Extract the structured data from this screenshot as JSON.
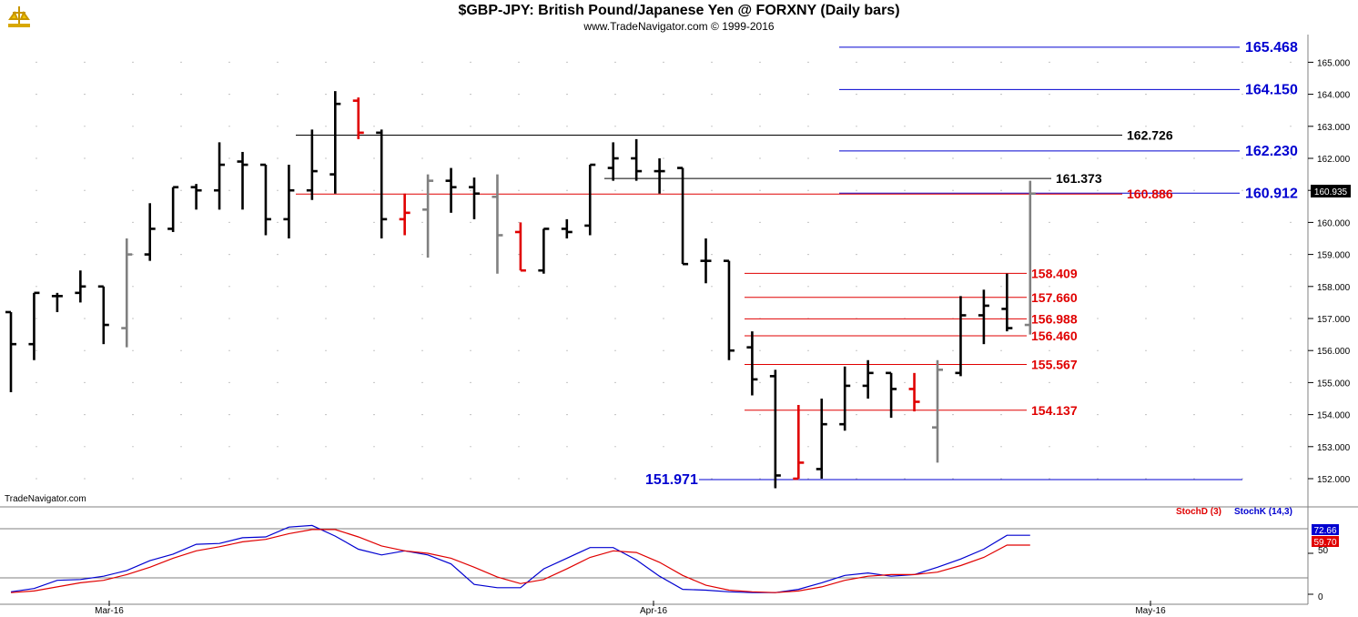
{
  "header": {
    "title": "$GBP-JPY:  British Pound/Japanese Yen @ FORXNY  (Daily bars)",
    "subtitle": "www.TradeNavigator.com © 1999-2016",
    "watermark": "TradeNavigator.com"
  },
  "colors": {
    "up_bar": "#000000",
    "down_bar": "#e00000",
    "neutral_bar": "#808080",
    "blue_level": "#0000d0",
    "red_level": "#e00000",
    "black_level": "#000000",
    "stochd": "#e00000",
    "stochk": "#0000d0"
  },
  "chart_data": [
    {
      "type": "ohlc",
      "title": "$GBP-JPY:  British Pound/Japanese Yen @ FORXNY  (Daily bars)",
      "y_tick_labels": [
        "152.000",
        "153.000",
        "154.000",
        "155.000",
        "156.000",
        "157.000",
        "158.000",
        "159.000",
        "160.000",
        "161.000",
        "162.000",
        "163.000",
        "164.000",
        "165.000"
      ],
      "x_tick_labels": [
        "Mar-16",
        "Apr-16",
        "May-16"
      ],
      "ylim": [
        151.7,
        165.7
      ],
      "last_price_label": "160.935",
      "bars": [
        {
          "o": 157.2,
          "h": 157.2,
          "l": 154.7,
          "c": 156.2,
          "color": "black"
        },
        {
          "o": 156.2,
          "h": 157.8,
          "l": 155.7,
          "c": 157.8,
          "color": "black"
        },
        {
          "o": 157.7,
          "h": 157.8,
          "l": 157.2,
          "c": 157.7,
          "color": "black"
        },
        {
          "o": 157.8,
          "h": 158.5,
          "l": 157.5,
          "c": 158.0,
          "color": "black"
        },
        {
          "o": 158.0,
          "h": 158.0,
          "l": 156.2,
          "c": 156.8,
          "color": "black"
        },
        {
          "o": 156.7,
          "h": 159.5,
          "l": 156.1,
          "c": 159.0,
          "color": "gray"
        },
        {
          "o": 159.0,
          "h": 160.6,
          "l": 158.8,
          "c": 159.8,
          "color": "black"
        },
        {
          "o": 159.8,
          "h": 161.1,
          "l": 159.7,
          "c": 161.1,
          "color": "black"
        },
        {
          "o": 161.1,
          "h": 161.2,
          "l": 160.4,
          "c": 161.0,
          "color": "black"
        },
        {
          "o": 161.0,
          "h": 162.5,
          "l": 160.4,
          "c": 161.8,
          "color": "black"
        },
        {
          "o": 161.9,
          "h": 162.2,
          "l": 160.4,
          "c": 161.8,
          "color": "black"
        },
        {
          "o": 161.8,
          "h": 161.8,
          "l": 159.6,
          "c": 160.1,
          "color": "black"
        },
        {
          "o": 160.1,
          "h": 161.8,
          "l": 159.5,
          "c": 161.0,
          "color": "black"
        },
        {
          "o": 161.0,
          "h": 162.9,
          "l": 160.7,
          "c": 161.6,
          "color": "black"
        },
        {
          "o": 161.5,
          "h": 164.1,
          "l": 160.9,
          "c": 163.7,
          "color": "black"
        },
        {
          "o": 163.8,
          "h": 163.9,
          "l": 162.6,
          "c": 162.8,
          "color": "red"
        },
        {
          "o": 162.8,
          "h": 162.9,
          "l": 159.5,
          "c": 160.1,
          "color": "black"
        },
        {
          "o": 160.1,
          "h": 160.9,
          "l": 159.6,
          "c": 160.3,
          "color": "red"
        },
        {
          "o": 160.4,
          "h": 161.5,
          "l": 158.9,
          "c": 161.3,
          "color": "gray"
        },
        {
          "o": 161.3,
          "h": 161.7,
          "l": 160.3,
          "c": 161.1,
          "color": "black"
        },
        {
          "o": 161.1,
          "h": 161.4,
          "l": 160.1,
          "c": 160.9,
          "color": "black"
        },
        {
          "o": 160.8,
          "h": 161.5,
          "l": 158.4,
          "c": 159.6,
          "color": "gray"
        },
        {
          "o": 159.7,
          "h": 160.0,
          "l": 158.5,
          "c": 158.5,
          "color": "red"
        },
        {
          "o": 158.5,
          "h": 159.8,
          "l": 158.4,
          "c": 159.8,
          "color": "black"
        },
        {
          "o": 159.8,
          "h": 160.1,
          "l": 159.5,
          "c": 159.7,
          "color": "black"
        },
        {
          "o": 159.9,
          "h": 161.8,
          "l": 159.6,
          "c": 161.8,
          "color": "black"
        },
        {
          "o": 161.7,
          "h": 162.5,
          "l": 161.3,
          "c": 162.0,
          "color": "black"
        },
        {
          "o": 162.0,
          "h": 162.6,
          "l": 161.3,
          "c": 161.6,
          "color": "black"
        },
        {
          "o": 161.6,
          "h": 162.0,
          "l": 160.9,
          "c": 161.6,
          "color": "black"
        },
        {
          "o": 161.7,
          "h": 161.7,
          "l": 158.7,
          "c": 158.7,
          "color": "black"
        },
        {
          "o": 158.8,
          "h": 159.5,
          "l": 158.1,
          "c": 158.8,
          "color": "black"
        },
        {
          "o": 158.8,
          "h": 158.8,
          "l": 155.7,
          "c": 156.0,
          "color": "black"
        },
        {
          "o": 156.1,
          "h": 156.6,
          "l": 154.6,
          "c": 155.1,
          "color": "black"
        },
        {
          "o": 155.2,
          "h": 155.4,
          "l": 151.7,
          "c": 152.1,
          "color": "black"
        },
        {
          "o": 152.0,
          "h": 154.3,
          "l": 152.0,
          "c": 152.5,
          "color": "red"
        },
        {
          "o": 152.3,
          "h": 154.5,
          "l": 152.0,
          "c": 153.7,
          "color": "black"
        },
        {
          "o": 153.7,
          "h": 155.5,
          "l": 153.5,
          "c": 154.9,
          "color": "black"
        },
        {
          "o": 154.9,
          "h": 155.7,
          "l": 154.5,
          "c": 155.3,
          "color": "black"
        },
        {
          "o": 155.3,
          "h": 155.3,
          "l": 153.9,
          "c": 154.8,
          "color": "black"
        },
        {
          "o": 154.8,
          "h": 155.3,
          "l": 154.1,
          "c": 154.4,
          "color": "red"
        },
        {
          "o": 153.6,
          "h": 155.7,
          "l": 152.5,
          "c": 155.4,
          "color": "gray"
        },
        {
          "o": 155.3,
          "h": 157.7,
          "l": 155.2,
          "c": 157.1,
          "color": "black"
        },
        {
          "o": 157.1,
          "h": 157.9,
          "l": 156.2,
          "c": 157.4,
          "color": "black"
        },
        {
          "o": 157.3,
          "h": 158.4,
          "l": 156.6,
          "c": 156.7,
          "color": "black"
        },
        {
          "o": 156.8,
          "h": 161.3,
          "l": 156.5,
          "c": 160.9,
          "color": "gray"
        }
      ],
      "levels": [
        {
          "label": "165.468",
          "value": 165.468,
          "color": "blue",
          "x0": 922,
          "x1": 1362,
          "label_x": 1368
        },
        {
          "label": "164.150",
          "value": 164.15,
          "color": "blue",
          "x0": 922,
          "x1": 1362,
          "label_x": 1368
        },
        {
          "label": "162.726",
          "value": 162.726,
          "color": "black",
          "x0": 325,
          "x1": 1233,
          "label_x": 1238
        },
        {
          "label": "162.230",
          "value": 162.23,
          "color": "blue",
          "x0": 922,
          "x1": 1362,
          "label_x": 1368
        },
        {
          "label": "161.373",
          "value": 161.373,
          "color": "black",
          "x0": 664,
          "x1": 1155,
          "label_x": 1160
        },
        {
          "label": "160.912",
          "value": 160.912,
          "color": "blue",
          "x0": 922,
          "x1": 1362,
          "label_x": 1368
        },
        {
          "label": "160.886",
          "value": 160.886,
          "color": "red",
          "x0": 325,
          "x1": 1233,
          "label_x": 1238
        },
        {
          "label": "158.409",
          "value": 158.409,
          "color": "red",
          "x0": 818,
          "x1": 1128,
          "label_x": 1133
        },
        {
          "label": "157.660",
          "value": 157.66,
          "color": "red",
          "x0": 818,
          "x1": 1128,
          "label_x": 1133
        },
        {
          "label": "156.988",
          "value": 156.988,
          "color": "red",
          "x0": 818,
          "x1": 1128,
          "label_x": 1133
        },
        {
          "label": "156.460",
          "value": 156.46,
          "color": "red",
          "x0": 818,
          "x1": 1128,
          "label_x": 1133
        },
        {
          "label": "155.567",
          "value": 155.567,
          "color": "red",
          "x0": 818,
          "x1": 1128,
          "label_x": 1133
        },
        {
          "label": "154.137",
          "value": 154.137,
          "color": "red",
          "x0": 818,
          "x1": 1128,
          "label_x": 1133
        },
        {
          "label": "151.971",
          "value": 151.971,
          "color": "blue",
          "x0": 768,
          "x1": 1365,
          "label_x": 709
        }
      ]
    },
    {
      "type": "line",
      "title": "",
      "legend": [
        "StochD (3)",
        "StochK (14,3)"
      ],
      "ylim": [
        0,
        100
      ],
      "y_tick_labels": [
        "0",
        "50"
      ],
      "reference_lines": [
        20,
        80
      ],
      "last_values": {
        "stochk": "72.66",
        "stochd": "59.70"
      },
      "series": [
        {
          "name": "StochK (14,3)",
          "values": [
            3,
            7,
            17,
            18,
            22,
            29,
            41,
            49,
            61,
            62,
            69,
            70,
            82,
            84,
            71,
            55,
            48,
            53,
            48,
            37,
            12,
            8,
            8,
            31,
            44,
            57,
            57,
            42,
            22,
            6,
            5,
            3,
            2,
            2,
            6,
            14,
            23,
            26,
            22,
            24,
            33,
            43,
            55,
            72,
            72
          ]
        },
        {
          "name": "StochD (3)",
          "values": [
            2,
            4,
            9,
            14,
            17,
            24,
            33,
            44,
            53,
            58,
            64,
            67,
            74,
            79,
            79,
            70,
            59,
            53,
            50,
            44,
            33,
            21,
            13,
            18,
            31,
            45,
            53,
            51,
            39,
            23,
            11,
            5,
            3,
            2,
            4,
            9,
            17,
            22,
            24,
            24,
            27,
            35,
            45,
            60,
            60
          ]
        }
      ]
    }
  ]
}
